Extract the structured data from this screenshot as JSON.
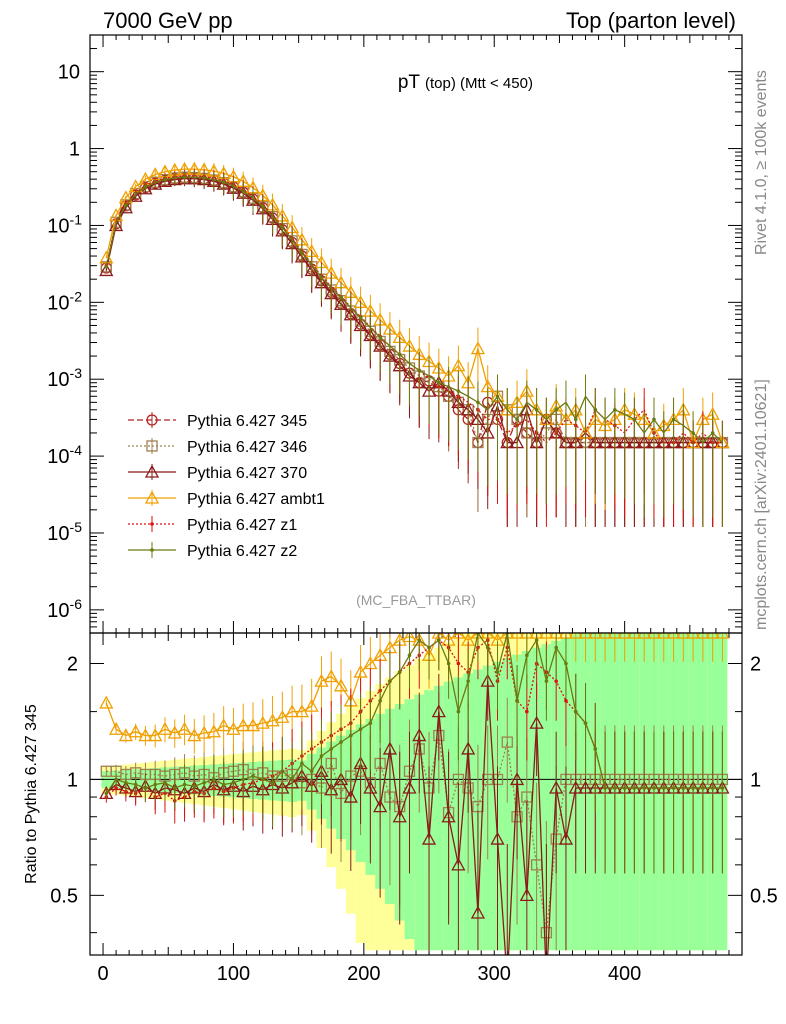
{
  "header": {
    "left": "7000 GeV pp",
    "right": "Top (parton level)"
  },
  "side_labels": {
    "rivet": "Rivet 4.1.0, ≥ 100k events",
    "mcplots": "mcplots.cern.ch [arXiv:2401.10621]"
  },
  "chart_data": {
    "type": "line",
    "title": "pT (top) (Mtt < 450)",
    "title_main": "pT",
    "title_sub": "(top) (Mtt < 450)",
    "watermark": "(MC_FBA_TTBAR)",
    "xlabel": "",
    "ylabel_ratio": "Ratio to Pythia 6.427 345",
    "xlim": [
      -10,
      490
    ],
    "ylim_main": [
      5e-07,
      30
    ],
    "ylim_ratio": [
      0.35,
      2.4
    ],
    "yscale": "log",
    "x_ticks": [
      "0",
      "100",
      "200",
      "300",
      "400"
    ],
    "y_ticks_main": [
      "10",
      "1",
      "10^-1",
      "10^-2",
      "10^-3",
      "10^-4",
      "10^-5",
      "10^-6"
    ],
    "y_ticks_ratio": [
      "2",
      "1",
      "0.5"
    ],
    "legend_position": "middle-left",
    "x": [
      2.5,
      10,
      17.5,
      25,
      32.5,
      40,
      47.5,
      55,
      62.5,
      70,
      77.5,
      85,
      92.5,
      100,
      107.5,
      115,
      122.5,
      130,
      137.5,
      145,
      152.5,
      160,
      167.5,
      175,
      182.5,
      190,
      197.5,
      205,
      212.5,
      220,
      227.5,
      235,
      242.5,
      250,
      257.5,
      265,
      272.5,
      280,
      287.5,
      295,
      302.5,
      310,
      317.5,
      325,
      332.5,
      340,
      347.5,
      355,
      362.5,
      370,
      377.5,
      385,
      392.5,
      400,
      407.5,
      415,
      422.5,
      430,
      437.5,
      445,
      452.5,
      460,
      467.5,
      475
    ],
    "series": [
      {
        "name": "Pythia 6.427 345",
        "color": "#b22222",
        "line": "dashed",
        "marker": "circle",
        "values": [
          0.028,
          0.105,
          0.18,
          0.25,
          0.31,
          0.355,
          0.385,
          0.405,
          0.415,
          0.415,
          0.405,
          0.385,
          0.355,
          0.315,
          0.27,
          0.22,
          0.17,
          0.125,
          0.088,
          0.06,
          0.04,
          0.027,
          0.019,
          0.0135,
          0.0097,
          0.0071,
          0.0052,
          0.0038,
          0.0028,
          0.0021,
          0.0016,
          0.0012,
          0.0009,
          0.00095,
          0.0007,
          0.0006,
          0.0004,
          0.0003,
          0.00015,
          0.0005,
          0.0003,
          0.00015,
          0.0003,
          0.0002,
          0.00015,
          0.0003,
          0.0002,
          0.00015,
          0.00015,
          0.00015,
          0.00015,
          0.00015,
          0.00015,
          0.00015,
          0.00015,
          0.00015,
          0.00015,
          0.00015,
          0.00015,
          0.00015,
          0.00015,
          0.00015,
          0.00015,
          0.00015
        ],
        "ratio": [
          1.0,
          1.0,
          1.0,
          1.0,
          1.0,
          1.0,
          1.0,
          1.0,
          1.0,
          1.0,
          1.0,
          1.0,
          1.0,
          1.0,
          1.0,
          1.0,
          1.0,
          1.0,
          1.0,
          1.0,
          1.0,
          1.0,
          1.0,
          1.0,
          1.0,
          1.0,
          1.0,
          1.0,
          1.0,
          1.0,
          1.0,
          1.0,
          1.0,
          1.0,
          1.0,
          1.0,
          1.0,
          1.0,
          1.0,
          1.0,
          1.0,
          1.0,
          1.0,
          1.0,
          1.0,
          1.0,
          1.0,
          1.0,
          1.0,
          1.0,
          1.0,
          1.0,
          1.0,
          1.0,
          1.0,
          1.0,
          1.0,
          1.0,
          1.0,
          1.0,
          1.0,
          1.0,
          1.0,
          1.0
        ]
      },
      {
        "name": "Pythia 6.427 346",
        "color": "#a08050",
        "line": "dotted",
        "marker": "square",
        "values": [
          0.029,
          0.11,
          0.185,
          0.26,
          0.32,
          0.365,
          0.395,
          0.415,
          0.425,
          0.42,
          0.41,
          0.39,
          0.36,
          0.32,
          0.275,
          0.225,
          0.175,
          0.13,
          0.091,
          0.063,
          0.042,
          0.029,
          0.02,
          0.0145,
          0.0105,
          0.0077,
          0.0057,
          0.0042,
          0.0031,
          0.0023,
          0.0018,
          0.0014,
          0.0011,
          0.0009,
          0.0008,
          0.0006,
          0.0005,
          0.0004,
          0.00015,
          0.0003,
          0.0006,
          0.0004,
          0.0003,
          0.0002,
          0.00015,
          0.0002,
          0.0003,
          0.00015,
          0.00015,
          0.00015,
          0.00015,
          0.00015,
          0.00015,
          0.00015,
          0.00015,
          0.00015,
          0.00015,
          0.00015,
          0.00015,
          0.00015,
          0.00015,
          0.00015,
          0.00015,
          0.00015
        ],
        "ratio": [
          1.05,
          1.05,
          1.03,
          1.04,
          1.03,
          1.03,
          1.02,
          1.03,
          1.04,
          1.02,
          1.03,
          1.01,
          1.04,
          1.05,
          1.06,
          1.03,
          1.04,
          1.02,
          1.02,
          1.03,
          0.98,
          1.0,
          0.95,
          1.1,
          0.92,
          1.02,
          1.05,
          0.98,
          1.1,
          0.9,
          0.85,
          1.05,
          1.2,
          0.95,
          1.3,
          0.82,
          1.0,
          0.95,
          0.85,
          1.0,
          1.0,
          1.25,
          0.8,
          0.9,
          0.6,
          0.4,
          0.7,
          1.0,
          1.0,
          1.0,
          1.0,
          1.0,
          1.0,
          1.0,
          1.0,
          1.0,
          1.0,
          1.0,
          1.0,
          1.0,
          1.0,
          1.0,
          1.0,
          1.0
        ]
      },
      {
        "name": "Pythia 6.427 370",
        "color": "#8b1a1a",
        "line": "solid",
        "marker": "triangle",
        "values": [
          0.026,
          0.1,
          0.17,
          0.24,
          0.3,
          0.345,
          0.375,
          0.395,
          0.405,
          0.405,
          0.395,
          0.375,
          0.345,
          0.305,
          0.262,
          0.213,
          0.165,
          0.12,
          0.085,
          0.058,
          0.039,
          0.026,
          0.018,
          0.013,
          0.0094,
          0.0069,
          0.005,
          0.0037,
          0.0027,
          0.002,
          0.0015,
          0.0011,
          0.0009,
          0.0007,
          0.0009,
          0.0007,
          0.0005,
          0.0004,
          0.0003,
          0.0002,
          0.00045,
          0.00015,
          0.00015,
          0.0004,
          0.00015,
          0.0003,
          0.0002,
          0.00015,
          0.00015,
          0.0002,
          0.00015,
          0.00015,
          0.00015,
          0.00015,
          0.00015,
          0.00015,
          0.00015,
          0.00015,
          0.00015,
          0.00015,
          0.00015,
          0.00015,
          0.00015,
          0.00015
        ],
        "ratio": [
          0.92,
          0.97,
          0.95,
          0.93,
          0.96,
          0.92,
          0.95,
          0.94,
          0.92,
          0.95,
          0.93,
          0.97,
          0.94,
          0.96,
          0.93,
          0.96,
          0.94,
          0.97,
          0.95,
          0.98,
          1.02,
          0.96,
          1.05,
          0.94,
          1.0,
          0.9,
          1.1,
          0.95,
          0.85,
          1.2,
          0.8,
          0.95,
          1.3,
          0.7,
          1.5,
          0.8,
          0.6,
          1.2,
          0.45,
          1.8,
          0.7,
          0.3,
          1.0,
          0.5,
          1.4,
          0.3,
          0.95,
          0.7,
          0.95,
          0.95,
          0.95,
          0.95,
          0.95,
          0.95,
          0.95,
          0.95,
          0.95,
          0.95,
          0.95,
          0.95,
          0.95,
          0.95,
          0.95,
          0.95
        ]
      },
      {
        "name": "Pythia 6.427 ambt1",
        "color": "#f0a000",
        "line": "solid",
        "marker": "triangle",
        "values": [
          0.038,
          0.135,
          0.23,
          0.32,
          0.4,
          0.46,
          0.5,
          0.525,
          0.54,
          0.54,
          0.53,
          0.51,
          0.475,
          0.43,
          0.375,
          0.31,
          0.245,
          0.185,
          0.133,
          0.094,
          0.065,
          0.046,
          0.033,
          0.024,
          0.018,
          0.0135,
          0.01,
          0.0077,
          0.0059,
          0.0045,
          0.0035,
          0.0027,
          0.0021,
          0.0017,
          0.0014,
          0.0011,
          0.0015,
          0.0009,
          0.0025,
          0.0008,
          0.0006,
          0.0004,
          0.0005,
          0.0007,
          0.0004,
          0.0003,
          0.00045,
          0.0003,
          0.0004,
          0.0002,
          0.0003,
          0.00025,
          0.0003,
          0.0004,
          0.00035,
          0.0003,
          0.0002,
          0.00025,
          0.0003,
          0.0004,
          0.00015,
          0.0003,
          0.00035,
          0.00015
        ],
        "ratio": [
          1.58,
          1.35,
          1.3,
          1.33,
          1.3,
          1.3,
          1.35,
          1.32,
          1.35,
          1.3,
          1.32,
          1.33,
          1.38,
          1.35,
          1.38,
          1.38,
          1.4,
          1.42,
          1.45,
          1.5,
          1.5,
          1.55,
          1.8,
          1.85,
          1.75,
          1.6,
          1.9,
          2.0,
          2.1,
          2.2,
          2.3,
          2.35,
          2.3,
          2.1,
          2.4,
          2.3,
          2.4,
          2.3,
          2.4,
          2.4,
          2.3,
          2.4,
          2.4,
          2.4,
          2.4,
          2.4,
          2.4,
          2.4,
          2.4,
          2.4,
          2.4,
          2.4,
          2.4,
          2.4,
          2.4,
          2.4,
          2.4,
          2.4,
          2.4,
          2.4,
          2.4,
          2.4,
          2.4,
          2.4
        ]
      },
      {
        "name": "Pythia 6.427 z1",
        "color": "#dd1111",
        "line": "dotted",
        "marker": "dot",
        "values": [
          0.03,
          0.112,
          0.19,
          0.265,
          0.33,
          0.375,
          0.41,
          0.43,
          0.44,
          0.44,
          0.43,
          0.41,
          0.38,
          0.34,
          0.29,
          0.24,
          0.185,
          0.138,
          0.098,
          0.068,
          0.046,
          0.032,
          0.022,
          0.016,
          0.0118,
          0.0087,
          0.0065,
          0.0048,
          0.0036,
          0.0027,
          0.0021,
          0.0016,
          0.0013,
          0.001,
          0.0008,
          0.0007,
          0.0006,
          0.0005,
          0.0004,
          0.0003,
          0.0003,
          0.0002,
          0.00025,
          0.0003,
          0.0002,
          0.00015,
          0.0002,
          0.0003,
          0.00025,
          0.0002,
          0.0004,
          0.0003,
          0.00025,
          0.0002,
          0.0003,
          0.0004,
          0.0002,
          0.00015,
          0.00015,
          0.0002,
          0.00015,
          0.0002,
          0.00015,
          0.00015
        ],
        "ratio": [
          0.9,
          0.95,
          0.93,
          0.92,
          0.95,
          0.9,
          0.92,
          0.88,
          0.9,
          0.93,
          0.92,
          0.95,
          0.93,
          0.95,
          0.97,
          0.98,
          1.0,
          1.02,
          1.05,
          1.1,
          1.15,
          1.2,
          1.25,
          1.3,
          1.35,
          1.4,
          1.5,
          1.6,
          1.7,
          1.8,
          1.9,
          2.0,
          2.1,
          2.2,
          2.3,
          2.2,
          2.0,
          1.9,
          2.2,
          2.3,
          1.8,
          2.2,
          1.6,
          1.5,
          2.0,
          1.9,
          1.8,
          1.6,
          1.5,
          1.4,
          1.2,
          0.95,
          0.95,
          0.95,
          0.95,
          0.95,
          0.95,
          0.95,
          0.95,
          0.95,
          0.95,
          0.95,
          0.95,
          0.95
        ]
      },
      {
        "name": "Pythia 6.427 z2",
        "color": "#6b7a10",
        "line": "solid",
        "marker": "dot",
        "values": [
          0.029,
          0.108,
          0.183,
          0.255,
          0.318,
          0.362,
          0.395,
          0.415,
          0.425,
          0.425,
          0.415,
          0.395,
          0.365,
          0.325,
          0.278,
          0.228,
          0.178,
          0.132,
          0.094,
          0.065,
          0.044,
          0.031,
          0.021,
          0.0155,
          0.0115,
          0.0085,
          0.0063,
          0.0047,
          0.0035,
          0.0027,
          0.0021,
          0.0016,
          0.0013,
          0.0011,
          0.0009,
          0.0008,
          0.0007,
          0.0006,
          0.0005,
          0.0004,
          0.0006,
          0.0004,
          0.0003,
          0.0005,
          0.0004,
          0.0003,
          0.0004,
          0.0005,
          0.0003,
          0.0006,
          0.0004,
          0.0003,
          0.0004,
          0.00035,
          0.0003,
          0.0002,
          0.0003,
          0.0002,
          0.0003,
          0.00025,
          0.0002,
          0.00015,
          0.0002,
          0.00015
        ],
        "ratio": [
          0.92,
          1.0,
          0.98,
          0.97,
          0.95,
          0.97,
          0.98,
          0.95,
          0.97,
          0.96,
          0.98,
          1.0,
          0.97,
          0.98,
          1.0,
          1.02,
          1.0,
          0.98,
          1.05,
          1.0,
          1.1,
          1.05,
          1.15,
          1.2,
          1.25,
          1.3,
          1.35,
          1.4,
          1.6,
          1.8,
          1.9,
          2.1,
          2.3,
          2.2,
          2.3,
          2.0,
          1.5,
          1.8,
          2.4,
          2.2,
          1.9,
          2.4,
          1.6,
          2.1,
          2.3,
          1.8,
          2.2,
          2.0,
          1.5,
          1.4,
          1.2,
          0.95,
          0.95,
          0.95,
          0.95,
          0.95,
          0.95,
          0.95,
          0.95,
          0.95,
          0.95,
          0.95,
          0.95,
          0.95
        ]
      }
    ]
  }
}
